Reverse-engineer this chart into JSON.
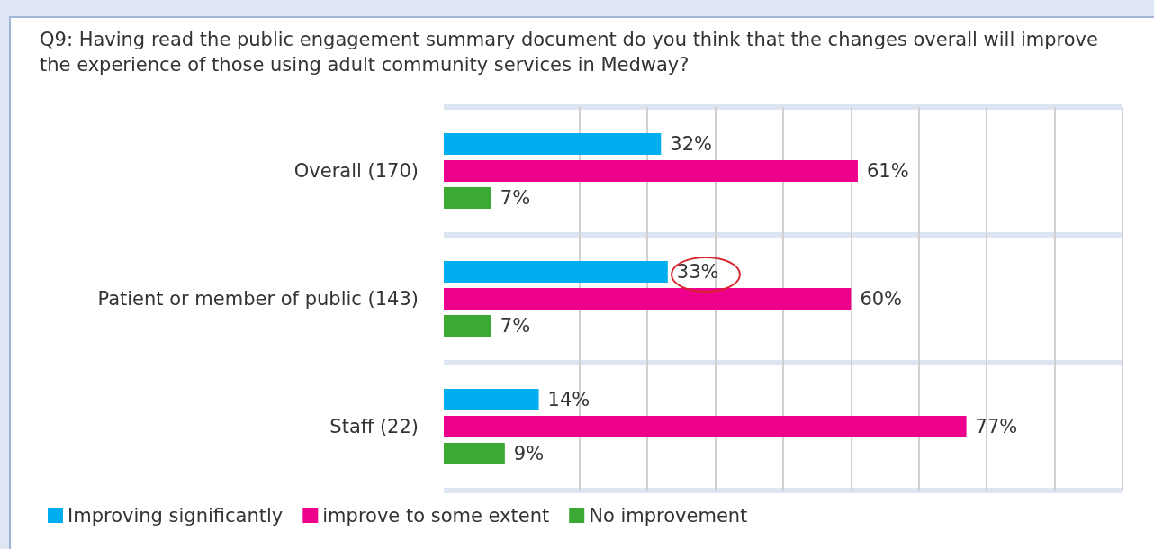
{
  "chart_data": {
    "type": "bar",
    "orientation": "horizontal",
    "title": "Q9: Having read the public engagement summary document do you think that the changes overall will improve the experience of those using adult community services in Medway?",
    "categories": [
      "Overall (170)",
      "Patient or member of public (143)",
      "Staff (22)"
    ],
    "series": [
      {
        "name": "Improving significantly",
        "color": "#00aeef",
        "values": [
          32,
          33,
          14
        ],
        "value_labels": [
          "32%",
          "33%",
          "14%"
        ]
      },
      {
        "name": "improve to some extent",
        "color": "#ec008c",
        "values": [
          61,
          60,
          77
        ],
        "value_labels": [
          "61%",
          "60%",
          "77%"
        ]
      },
      {
        "name": "No improvement",
        "color": "#3aaa35",
        "values": [
          7,
          7,
          9
        ],
        "value_labels": [
          "7%",
          "7%",
          "9%"
        ]
      }
    ],
    "xlim": [
      0,
      100
    ],
    "xticks": [
      {
        "value": 20,
        "label": null
      },
      {
        "value": 30,
        "label": null
      },
      {
        "value": 40,
        "label": null
      },
      {
        "value": 50,
        "label": null
      },
      {
        "value": 60,
        "label": null
      },
      {
        "value": 70,
        "label": null
      },
      {
        "value": 80,
        "label": null
      },
      {
        "value": 90,
        "label": null
      },
      {
        "value": 100,
        "label": null
      }
    ],
    "tick_labels": "y",
    "grid": "x",
    "legend": "bottom left"
  }
}
